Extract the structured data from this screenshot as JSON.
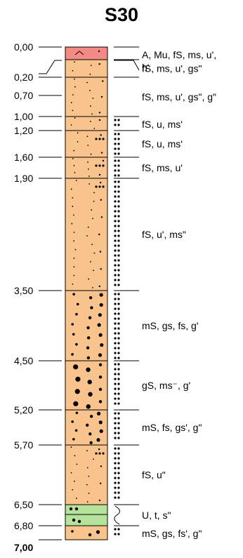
{
  "title": "S30",
  "final_depth": "7,00",
  "colors": {
    "sand": "#f9c38d",
    "topsoil": "#f48a86",
    "silt": "#b5e39b",
    "line": "#000000"
  },
  "layers": [
    {
      "top": 0.0,
      "bottom": 0.2,
      "depth_label": "0,00",
      "description": "A, Mu, fS, ms, u',",
      "description_2": "h'",
      "fill": "topsoil",
      "pattern": "topsoil",
      "marker": "none"
    },
    {
      "top": 0.2,
      "bottom": 0.7,
      "depth_label": "0,20",
      "description": "fS, ms, u', gs\"",
      "fill": "sand",
      "pattern": "fine_sand",
      "marker": "none"
    },
    {
      "top": 0.7,
      "bottom": 1.0,
      "depth_label": "0,70",
      "description": "fS, ms, u', gs\", g\"",
      "fill": "sand",
      "pattern": "fine_sand",
      "marker": "none"
    },
    {
      "top": 1.0,
      "bottom": 1.2,
      "depth_label": "1,00",
      "description": "fS, u, ms'",
      "fill": "sand",
      "pattern": "fine_sand",
      "marker": "dots"
    },
    {
      "top": 1.2,
      "bottom": 1.6,
      "depth_label": "1,20",
      "description": "fS, u, ms'",
      "fill": "sand",
      "pattern": "fine_sand",
      "marker": "dots"
    },
    {
      "top": 1.6,
      "bottom": 1.9,
      "depth_label": "1,60",
      "description": "fS, ms, u'",
      "fill": "sand",
      "pattern": "fine_sand",
      "marker": "dots"
    },
    {
      "top": 1.9,
      "bottom": 3.5,
      "depth_label": "1,90",
      "description": "fS, u', ms\"",
      "fill": "sand",
      "pattern": "fine_sand",
      "marker": "dots"
    },
    {
      "top": 3.5,
      "bottom": 4.5,
      "depth_label": "3,50",
      "description": "mS, gs, fs, g'",
      "fill": "sand",
      "pattern": "medium_sand",
      "marker": "dots"
    },
    {
      "top": 4.5,
      "bottom": 5.2,
      "depth_label": "4,50",
      "description": "gS, ms⁻, g'",
      "fill": "sand",
      "pattern": "coarse_sand",
      "marker": "dots"
    },
    {
      "top": 5.2,
      "bottom": 5.7,
      "depth_label": "5,20",
      "description": "mS, fs, gs', g\"",
      "fill": "sand",
      "pattern": "medium_sand",
      "marker": "dots"
    },
    {
      "top": 5.7,
      "bottom": 6.5,
      "depth_label": "5,70",
      "description": "fS, u\"",
      "fill": "sand",
      "pattern": "fine_sand",
      "marker": "dots"
    },
    {
      "top": 6.5,
      "bottom": 6.8,
      "depth_label": "6,50",
      "description": "U, t, s\"",
      "fill": "silt",
      "pattern": "silt",
      "marker": "wave"
    },
    {
      "top": 6.8,
      "bottom": 7.0,
      "depth_label": "6,80",
      "description": "mS, gs, fs', g\"",
      "fill": "sand",
      "pattern": "medium_sand",
      "marker": "dots"
    }
  ]
}
